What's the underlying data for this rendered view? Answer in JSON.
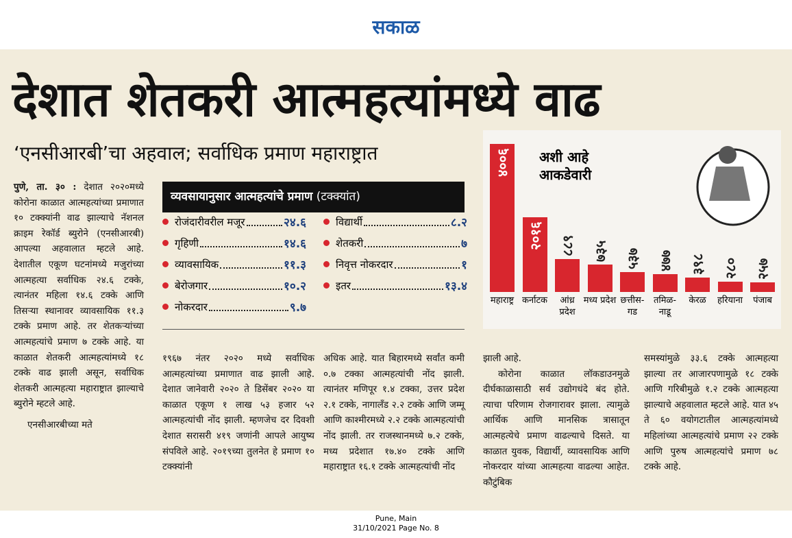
{
  "masthead": "सकाळ",
  "headline": "देशात शेतकरी आत्महत्यांमध्ये वाढ",
  "subheadline": "‘एनसीआरबी’चा अहवाल; सर्वाधिक प्रमाण महाराष्ट्रात",
  "lead": {
    "dateline": "पुणे, ता. ३० :",
    "text": "देशात २०२०मध्ये कोरोना काळात आत्महत्यांच्या प्रमाणात १० टक्क्यांनी वाढ झाल्याचे नॅशनल क्राइम रेकॉर्ड ब्युरोने (एनसीआरबी) आपल्या अहवालात म्हटले आहे. देशातील एकूण घटनांमध्ये मजुरांच्या आत्महत्या सर्वाधिक २४.६ टक्के, त्यानंतर महिला १४.६ टक्के आणि तिसऱ्या स्थानावर व्यावसायिक ११.३ टक्के प्रमाण आहे. तर शेतकऱ्यांच्या आत्महत्यांचे प्रमाण ७ टक्के आहे. या काळात शेतकरी आत्महत्यांमध्ये १८ टक्के वाढ झाली असून, सर्वाधिक शेतकरी आत्महत्या महाराष्ट्रात झाल्याचे ब्युरोने म्हटले आहे.",
    "text2": "एनसीआरबीच्या मते"
  },
  "box": {
    "title": "व्यवसायानुसार आत्महत्यांचे प्रमाण",
    "unit": "(टक्क्यांत)",
    "rows": [
      [
        "रोजंदारीवरील मजूर",
        "२४.६"
      ],
      [
        "गृहिणी",
        "१४.६"
      ],
      [
        "व्यावसायिक",
        "११.३"
      ],
      [
        "बेरोजगार",
        "१०.२"
      ],
      [
        "नोकरदार",
        "९.७"
      ],
      [
        "विद्यार्थी",
        "८.२"
      ],
      [
        "शेतकरी",
        "७"
      ],
      [
        "निवृत्त नोकरदार",
        "१"
      ],
      [
        "इतर",
        "१३.४"
      ]
    ]
  },
  "columns": [
    "१९६७ नंतर २०२० मध्ये सर्वाधिक आत्महत्यांच्या प्रमाणात वाढ झाली आहे. देशात जानेवारी २०२० ते डिसेंबर २०२० या काळात एकूण १ लाख ५३ हजार ५२ आत्महत्यांची नोंद झाली. म्हणजेच दर दिवशी देशात सरासरी ४१९ जणांनी आपले आयुष्य संपविले आहे. २०१९च्या तुलनेत हे प्रमाण १० टक्क्यांनी",
    "अधिक आहे. यात बिहारमध्ये सर्वांत कमी ०.७ टक्का आत्महत्यांची नोंद झाली. त्यानंतर मणिपूर १.४ टक्का, उत्तर प्रदेश २.१ टक्के, नागालँड २.२ टक्के आणि जम्मू आणि काश्मीरमध्ये २.२ टक्के आत्महत्यांची नोंद झाली. तर राजस्थानमध्ये ७.२ टक्के, मध्य प्रदेशात १७.४० टक्के आणि महाराष्ट्रात १६.१ टक्के आत्महत्यांची नोंद",
    "झाली आहे.",
    "कोरोना काळात लॉकडाउनमुळे दीर्घकाळासाठी सर्व उद्योगधंदे बंद होते. त्याचा परिणाम रोजगारावर झाला. त्यामुळे आर्थिक आणि मानसिक त्रासातून आत्महत्येचे प्रमाण वाढल्याचे दिसते. या काळात युवक, विद्यार्थी, व्यावसायिक आणि नोकरदार यांच्या आत्महत्या वाढल्या आहेत. कौटुंबिक",
    "समस्यांमुळे ३३.६ टक्के आत्महत्या झाल्या तर आजारपणामुळे १८ टक्के आणि गरिबीमुळे १.२ टक्के आत्महत्या झाल्याचे अहवालात म्हटले आहे. यात ४५ ते ६० वयोगटातील आत्महत्यांमध्ये महिलांच्या आत्महत्यांचे प्रमाण २२ टक्के आणि पुरुष आत्महत्यांचे प्रमाण ७८ टक्के आहे."
  ],
  "chart_data": {
    "type": "bar",
    "title": "अशी आहे आकडेवारी",
    "color": "#d8262e",
    "categories": [
      "महाराष्ट्र",
      "कर्नाटक",
      "आंध्र प्रदेश",
      "मध्य प्रदेश",
      "छत्तीस-गड",
      "तमिळ-नाडू",
      "केरळ",
      "हरियाना",
      "पंजाब"
    ],
    "values": [
      4006,
      2016,
      889,
      735,
      537,
      477,
      398,
      280,
      257
    ],
    "value_labels": [
      "४००६",
      "२०१६",
      "८८९",
      "७३५",
      "५३७",
      "४७७",
      "३९८",
      "२८०",
      "२५७"
    ]
  },
  "footer": {
    "edition": "Pune, Main",
    "date_page": "31/10/2021  Page No. 8"
  }
}
